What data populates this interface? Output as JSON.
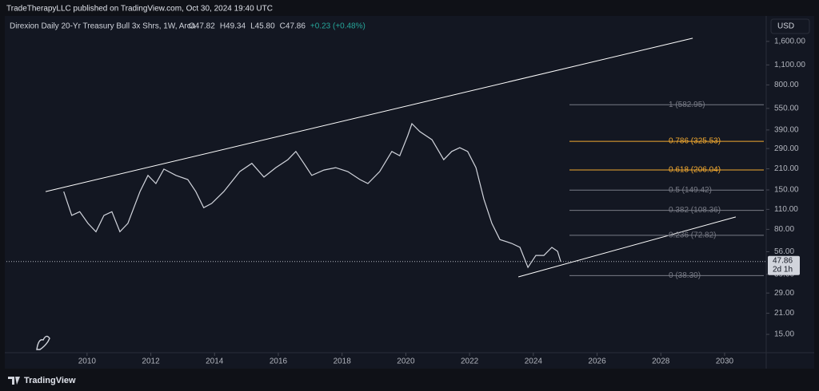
{
  "header": {
    "publisher": "TradeTherapyLLC published on TradingView.com, Oct 30, 2024 19:40 UTC"
  },
  "footer": {
    "brand": "TradingView"
  },
  "chart_data": {
    "type": "line",
    "title": "Direxion Daily 20-Yr Treasury Bull 3x Shrs, 1W, Arca",
    "ohlc": [
      "O47.82",
      "H49.34",
      "L45.80",
      "C47.86",
      "+0.23 (+0.48%)"
    ],
    "currency": "USD",
    "log_scale": true,
    "xlim": [
      2007.47,
      2031.23
    ],
    "xticks": [
      2010,
      2012,
      2014,
      2016,
      2018,
      2020,
      2022,
      2024,
      2026,
      2028,
      2030
    ],
    "ylim": [
      11.2,
      2340
    ],
    "yticks": [
      {
        "value": 1600,
        "label": "1,600.00"
      },
      {
        "value": 1100,
        "label": "1,100.00"
      },
      {
        "value": 800,
        "label": "800.00"
      },
      {
        "value": 550,
        "label": "550.00"
      },
      {
        "value": 390,
        "label": "390.00"
      },
      {
        "value": 290,
        "label": "290.00"
      },
      {
        "value": 210,
        "label": "210.00"
      },
      {
        "value": 150,
        "label": "150.00"
      },
      {
        "value": 110,
        "label": "110.00"
      },
      {
        "value": 80,
        "label": "80.00"
      },
      {
        "value": 56,
        "label": "56.00"
      },
      {
        "value": 39,
        "label": "39.00"
      },
      {
        "value": 29,
        "label": "29.00"
      },
      {
        "value": 21,
        "label": "21.00"
      },
      {
        "value": 15,
        "label": "15.00"
      }
    ],
    "x": [
      2009.27,
      2009.52,
      2009.77,
      2010.03,
      2010.28,
      2010.53,
      2010.78,
      2011.03,
      2011.28,
      2011.66,
      2011.91,
      2012.16,
      2012.41,
      2012.79,
      2013.16,
      2013.41,
      2013.66,
      2013.91,
      2014.29,
      2014.79,
      2015.17,
      2015.55,
      2015.92,
      2016.3,
      2016.55,
      2016.8,
      2017.05,
      2017.43,
      2017.8,
      2018.18,
      2018.56,
      2018.81,
      2019.18,
      2019.56,
      2019.81,
      2020.06,
      2020.19,
      2020.44,
      2020.82,
      2021.19,
      2021.44,
      2021.69,
      2021.94,
      2022.2,
      2022.45,
      2022.7,
      2022.95,
      2023.32,
      2023.58,
      2023.83,
      2024.08,
      2024.33,
      2024.58,
      2024.76,
      2024.86
    ],
    "series": [
      {
        "color": "#d1d4dc",
        "values": [
          146,
          100,
          106,
          88,
          77,
          100,
          106,
          77,
          88,
          146,
          189,
          166,
          209,
          189,
          177,
          146,
          113,
          121,
          146,
          201,
          229,
          184,
          214,
          243,
          277,
          229,
          189,
          206,
          214,
          201,
          177,
          166,
          201,
          277,
          259,
          356,
          431,
          380,
          334,
          243,
          277,
          294,
          277,
          214,
          129,
          88,
          68,
          64,
          60,
          43.6,
          52.8,
          52.8,
          60,
          56.4,
          47.86
        ]
      }
    ],
    "fib_levels": [
      {
        "label": "1 (582.95)",
        "value": 582.95,
        "color": "#787b86"
      },
      {
        "label": "0.786 (325.53)",
        "value": 325.53,
        "color": "#f0a830"
      },
      {
        "label": "0.618 (206.04)",
        "value": 206.04,
        "color": "#f0a830"
      },
      {
        "label": "0.5 (149.42)",
        "value": 149.42,
        "color": "#787b86"
      },
      {
        "label": "0.382 (108.36)",
        "value": 108.36,
        "color": "#787b86"
      },
      {
        "label": "0.236 (72.82)",
        "value": 72.82,
        "color": "#787b86"
      },
      {
        "label": "0 (38.30)",
        "value": 38.3,
        "color": "#787b86"
      }
    ],
    "trendlines": [
      {
        "x": [
          2008.7,
          2029.0
        ],
        "y": [
          146,
          1683
        ],
        "color": "#ffffff"
      },
      {
        "x": [
          2023.53,
          2030.35
        ],
        "y": [
          37.5,
          97.5
        ],
        "color": "#ffffff"
      }
    ],
    "last_price": {
      "value": 47.86,
      "countdown": "2d 1h"
    }
  }
}
